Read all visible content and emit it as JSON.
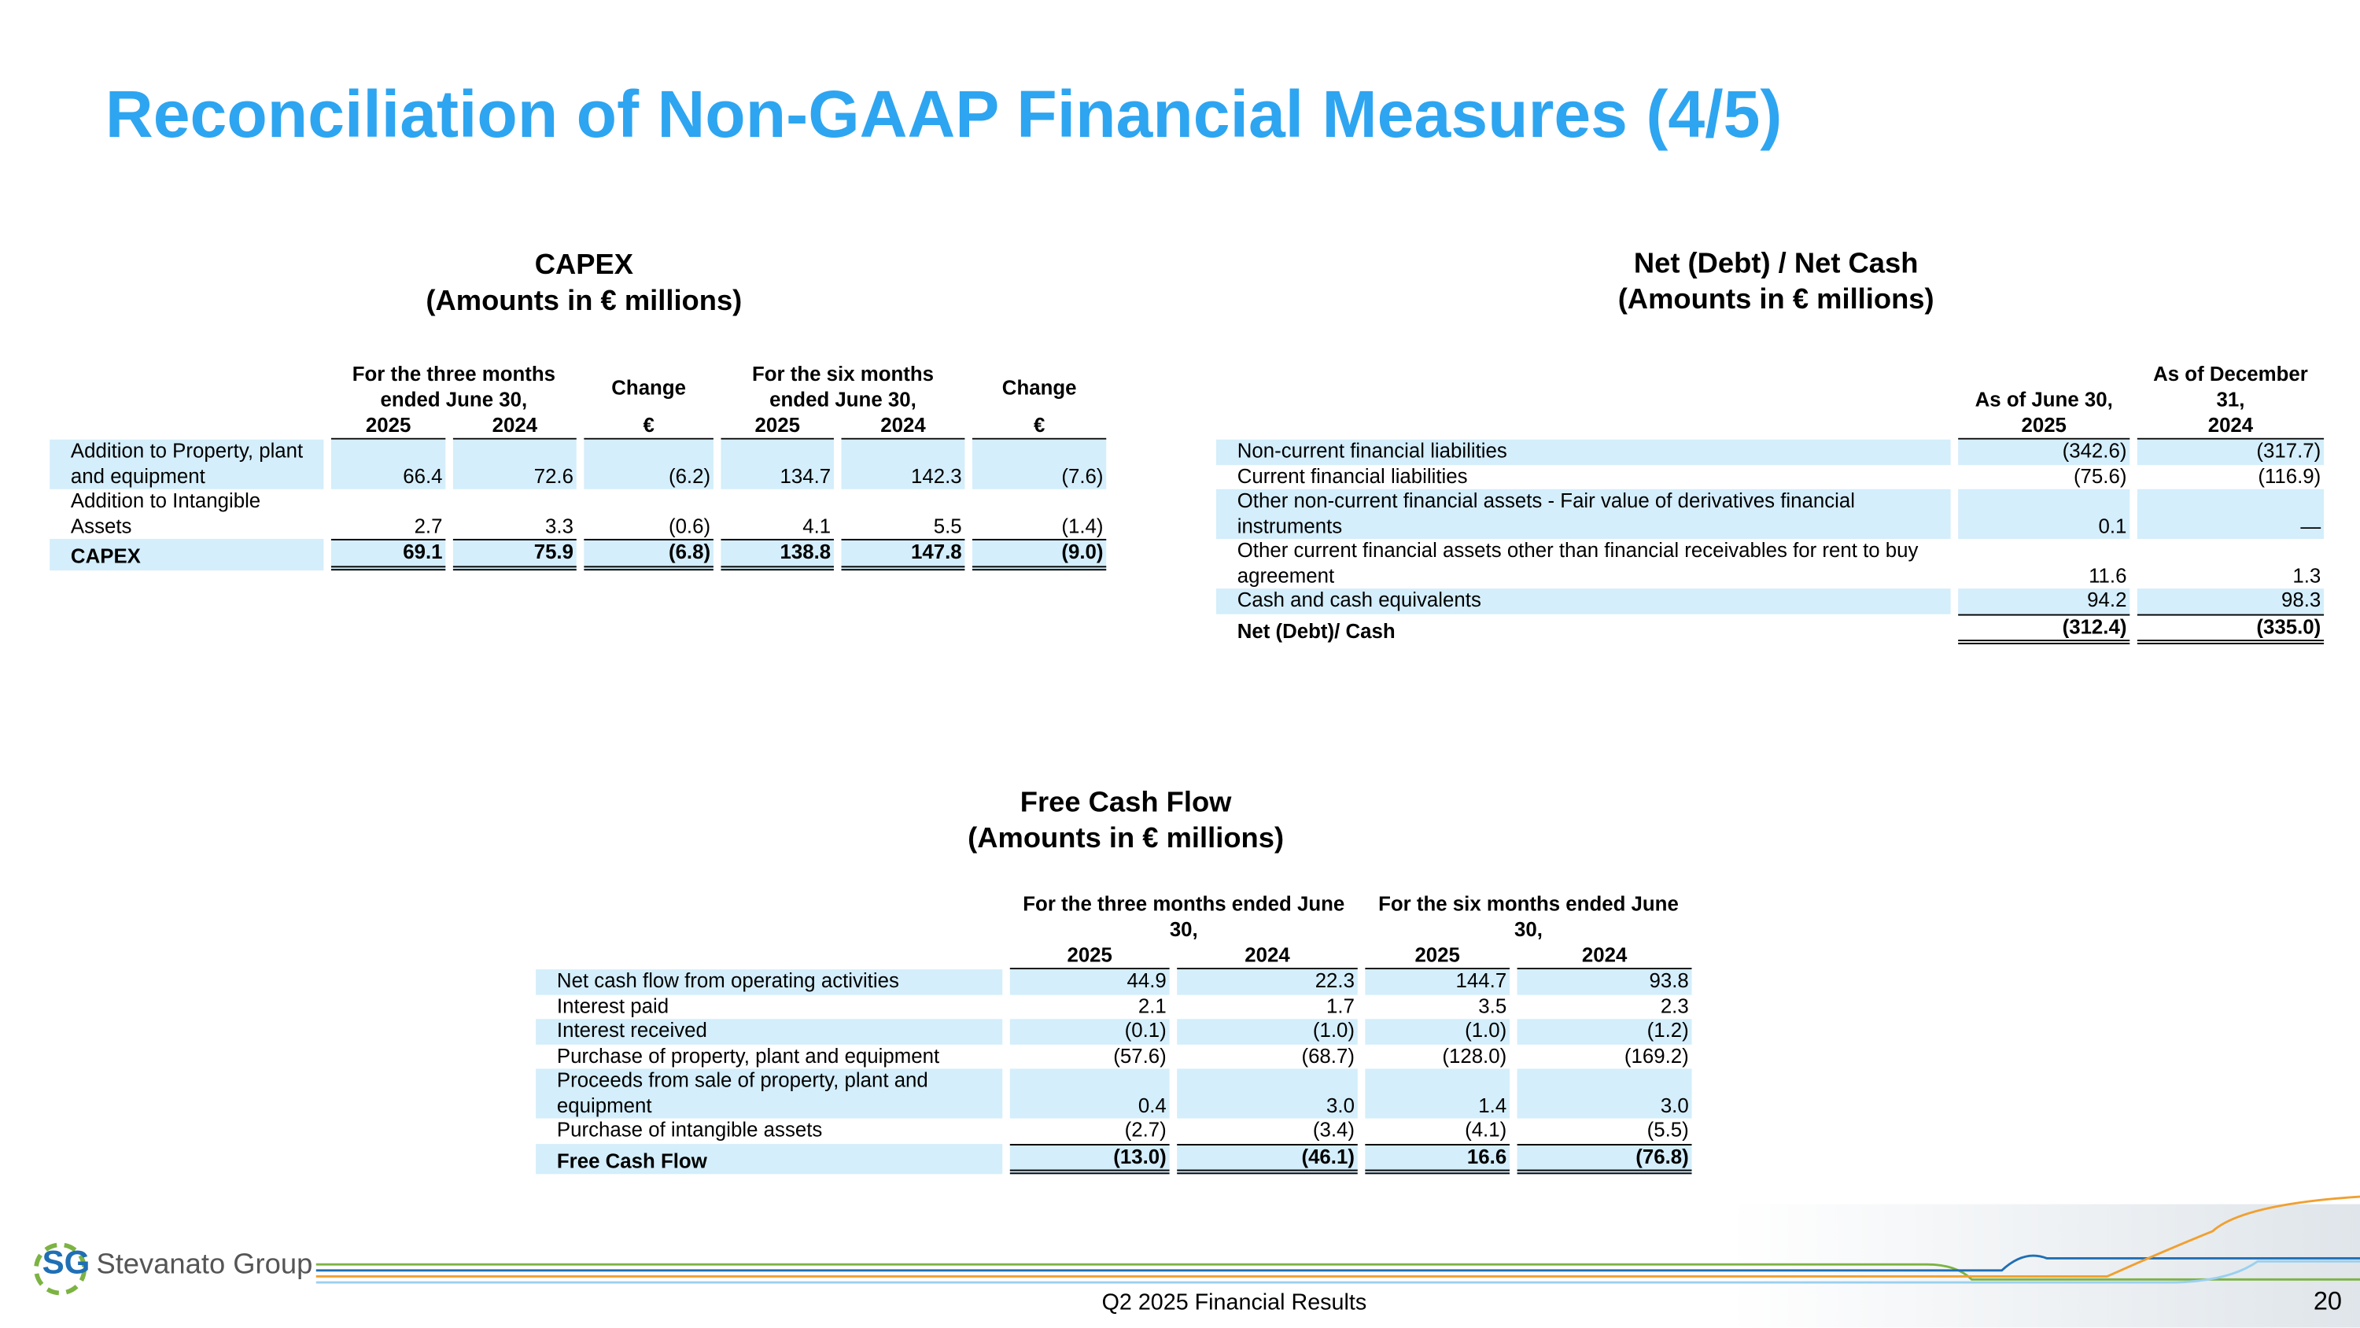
{
  "title": "Reconciliation of Non-GAAP Financial Measures (4/5)",
  "capex": {
    "title": "CAPEX",
    "subtitle": "(Amounts in € millions)",
    "groups": [
      "For the three months ended June 30,",
      "Change",
      "For the six months ended June 30,",
      "Change"
    ],
    "years": [
      "2025",
      "2024",
      "€",
      "2025",
      "2024",
      "€"
    ],
    "rows": [
      {
        "label": "Addition to Property, plant and equipment",
        "values": [
          "66.4",
          "72.6",
          "(6.2)",
          "134.7",
          "142.3",
          "(7.6)"
        ]
      },
      {
        "label": "Addition to Intangible Assets",
        "values": [
          "2.7",
          "3.3",
          "(0.6)",
          "4.1",
          "5.5",
          "(1.4)"
        ]
      },
      {
        "label": "CAPEX",
        "values": [
          "69.1",
          "75.9",
          "(6.8)",
          "138.8",
          "147.8",
          "(9.0)"
        ]
      }
    ]
  },
  "net_debt": {
    "title": "Net (Debt) / Net Cash",
    "subtitle": "(Amounts in € millions)",
    "groups": [
      "As of June 30,",
      "As of December 31,"
    ],
    "years": [
      "2025",
      "2024"
    ],
    "rows": [
      {
        "label": "Non-current financial liabilities",
        "values": [
          "(342.6)",
          "(317.7)"
        ]
      },
      {
        "label": "Current financial liabilities",
        "values": [
          "(75.6)",
          "(116.9)"
        ]
      },
      {
        "label": "Other non-current financial assets - Fair value of derivatives financial instruments",
        "values": [
          "0.1",
          "—"
        ]
      },
      {
        "label": "Other current financial assets other than financial receivables for rent to buy agreement",
        "values": [
          "11.6",
          "1.3"
        ]
      },
      {
        "label": "Cash and cash equivalents",
        "values": [
          "94.2",
          "98.3"
        ]
      },
      {
        "label": "Net (Debt)/ Cash",
        "values": [
          "(312.4)",
          "(335.0)"
        ]
      }
    ]
  },
  "free_cash_flow": {
    "title": "Free Cash Flow",
    "subtitle": "(Amounts in € millions)",
    "groups": [
      "For the three months ended June 30,",
      "For the six months ended June 30,"
    ],
    "years": [
      "2025",
      "2024",
      "2025",
      "2024"
    ],
    "rows": [
      {
        "label": "Net cash flow from operating activities",
        "values": [
          "44.9",
          "22.3",
          "144.7",
          "93.8"
        ]
      },
      {
        "label": "Interest paid",
        "values": [
          "2.1",
          "1.7",
          "3.5",
          "2.3"
        ]
      },
      {
        "label": "Interest received",
        "values": [
          "(0.1)",
          "(1.0)",
          "(1.0)",
          "(1.2)"
        ]
      },
      {
        "label": "Purchase of property, plant and equipment",
        "values": [
          "(57.6)",
          "(68.7)",
          "(128.0)",
          "(169.2)"
        ]
      },
      {
        "label": "Proceeds from sale of property, plant and equipment",
        "values": [
          "0.4",
          "3.0",
          "1.4",
          "3.0"
        ]
      },
      {
        "label": "Purchase of intangible assets",
        "values": [
          "(2.7)",
          "(3.4)",
          "(4.1)",
          "(5.5)"
        ]
      },
      {
        "label": "Free Cash Flow",
        "values": [
          "(13.0)",
          "(46.1)",
          "16.6",
          "(76.8)"
        ]
      }
    ]
  },
  "footer": {
    "logo_mark": "SG",
    "logo": "Stevanato Group",
    "caption": "Q2 2025 Financial Results",
    "page": "20"
  }
}
